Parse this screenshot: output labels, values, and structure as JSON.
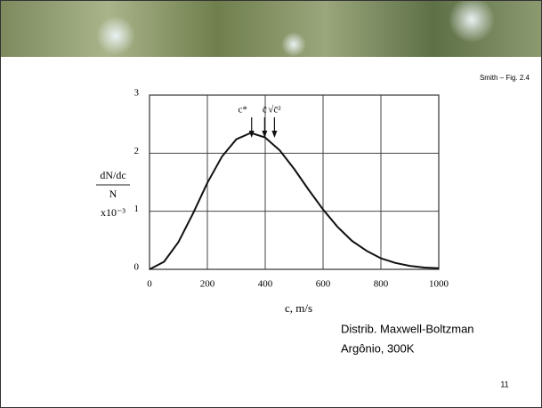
{
  "source": "Smith – Fig. 2.4",
  "chart_data": {
    "type": "line",
    "xlabel": "c, m/s",
    "ylabel": [
      "dN/dc",
      "N",
      "x10⁻³"
    ],
    "x": [
      0,
      50,
      100,
      150,
      200,
      250,
      300,
      350,
      400,
      450,
      500,
      550,
      600,
      650,
      700,
      750,
      800,
      850,
      900,
      950,
      1000
    ],
    "values": [
      0,
      0.13,
      0.47,
      0.96,
      1.49,
      1.94,
      2.24,
      2.35,
      2.27,
      2.05,
      1.73,
      1.37,
      1.03,
      0.73,
      0.49,
      0.32,
      0.19,
      0.11,
      0.06,
      0.03,
      0.02
    ],
    "color": "#111111",
    "xlim": [
      0,
      1000
    ],
    "xticks": [
      0,
      200,
      400,
      600,
      800,
      1000
    ],
    "ylim": [
      0,
      3
    ],
    "yticks": [
      0,
      1,
      2,
      3
    ],
    "grid": true,
    "annotations": [
      {
        "text": "c*",
        "x": 353
      },
      {
        "text": "c̄",
        "x": 398
      },
      {
        "text": "√c̄²",
        "x": 432
      }
    ]
  },
  "caption": [
    "Distrib. Maxwell-Boltzman",
    "Argônio, 300K"
  ],
  "page_number": "11"
}
